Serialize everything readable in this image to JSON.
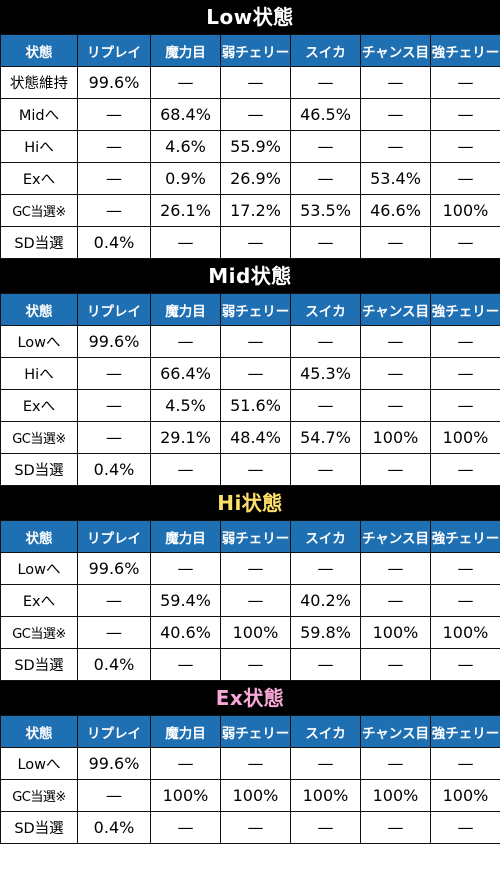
{
  "headers": [
    "状態",
    "リプレイ",
    "魔力目",
    "弱チェリー",
    "スイカ",
    "チャンス目",
    "強チェリー"
  ],
  "sections": [
    {
      "title": "Low状態",
      "title_color": "#ffffff",
      "rows": [
        {
          "label": "状態維持",
          "cells": [
            "99.6%",
            "—",
            "—",
            "—",
            "—",
            "—"
          ]
        },
        {
          "label": "Midへ",
          "cells": [
            "—",
            "68.4%",
            "—",
            "46.5%",
            "—",
            "—"
          ]
        },
        {
          "label": "Hiへ",
          "cells": [
            "—",
            "4.6%",
            "55.9%",
            "—",
            "—",
            "—"
          ]
        },
        {
          "label": "Exへ",
          "cells": [
            "—",
            "0.9%",
            "26.9%",
            "—",
            "53.4%",
            "—"
          ]
        },
        {
          "label": "GC当選※",
          "cells": [
            "—",
            "26.1%",
            "17.2%",
            "53.5%",
            "46.6%",
            "100%"
          ]
        },
        {
          "label": "SD当選",
          "cells": [
            "0.4%",
            "—",
            "—",
            "—",
            "—",
            "—"
          ]
        }
      ]
    },
    {
      "title": "Mid状態",
      "title_color": "#ffffff",
      "rows": [
        {
          "label": "Lowへ",
          "cells": [
            "99.6%",
            "—",
            "—",
            "—",
            "—",
            "—"
          ]
        },
        {
          "label": "Hiへ",
          "cells": [
            "—",
            "66.4%",
            "—",
            "45.3%",
            "—",
            "—"
          ]
        },
        {
          "label": "Exへ",
          "cells": [
            "—",
            "4.5%",
            "51.6%",
            "—",
            "—",
            "—"
          ]
        },
        {
          "label": "GC当選※",
          "cells": [
            "—",
            "29.1%",
            "48.4%",
            "54.7%",
            "100%",
            "100%"
          ]
        },
        {
          "label": "SD当選",
          "cells": [
            "0.4%",
            "—",
            "—",
            "—",
            "—",
            "—"
          ]
        }
      ]
    },
    {
      "title": "Hi状態",
      "title_color": "#ffe066",
      "rows": [
        {
          "label": "Lowへ",
          "cells": [
            "99.6%",
            "—",
            "—",
            "—",
            "—",
            "—"
          ]
        },
        {
          "label": "Exへ",
          "cells": [
            "—",
            "59.4%",
            "—",
            "40.2%",
            "—",
            "—"
          ]
        },
        {
          "label": "GC当選※",
          "cells": [
            "—",
            "40.6%",
            "100%",
            "59.8%",
            "100%",
            "100%"
          ]
        },
        {
          "label": "SD当選",
          "cells": [
            "0.4%",
            "—",
            "—",
            "—",
            "—",
            "—"
          ]
        }
      ]
    },
    {
      "title": "Ex状態",
      "title_color": "#f7a8d8",
      "rows": [
        {
          "label": "Lowへ",
          "cells": [
            "99.6%",
            "—",
            "—",
            "—",
            "—",
            "—"
          ]
        },
        {
          "label": "GC当選※",
          "cells": [
            "—",
            "100%",
            "100%",
            "100%",
            "100%",
            "100%"
          ]
        },
        {
          "label": "SD当選",
          "cells": [
            "0.4%",
            "—",
            "—",
            "—",
            "—",
            "—"
          ]
        }
      ]
    }
  ]
}
